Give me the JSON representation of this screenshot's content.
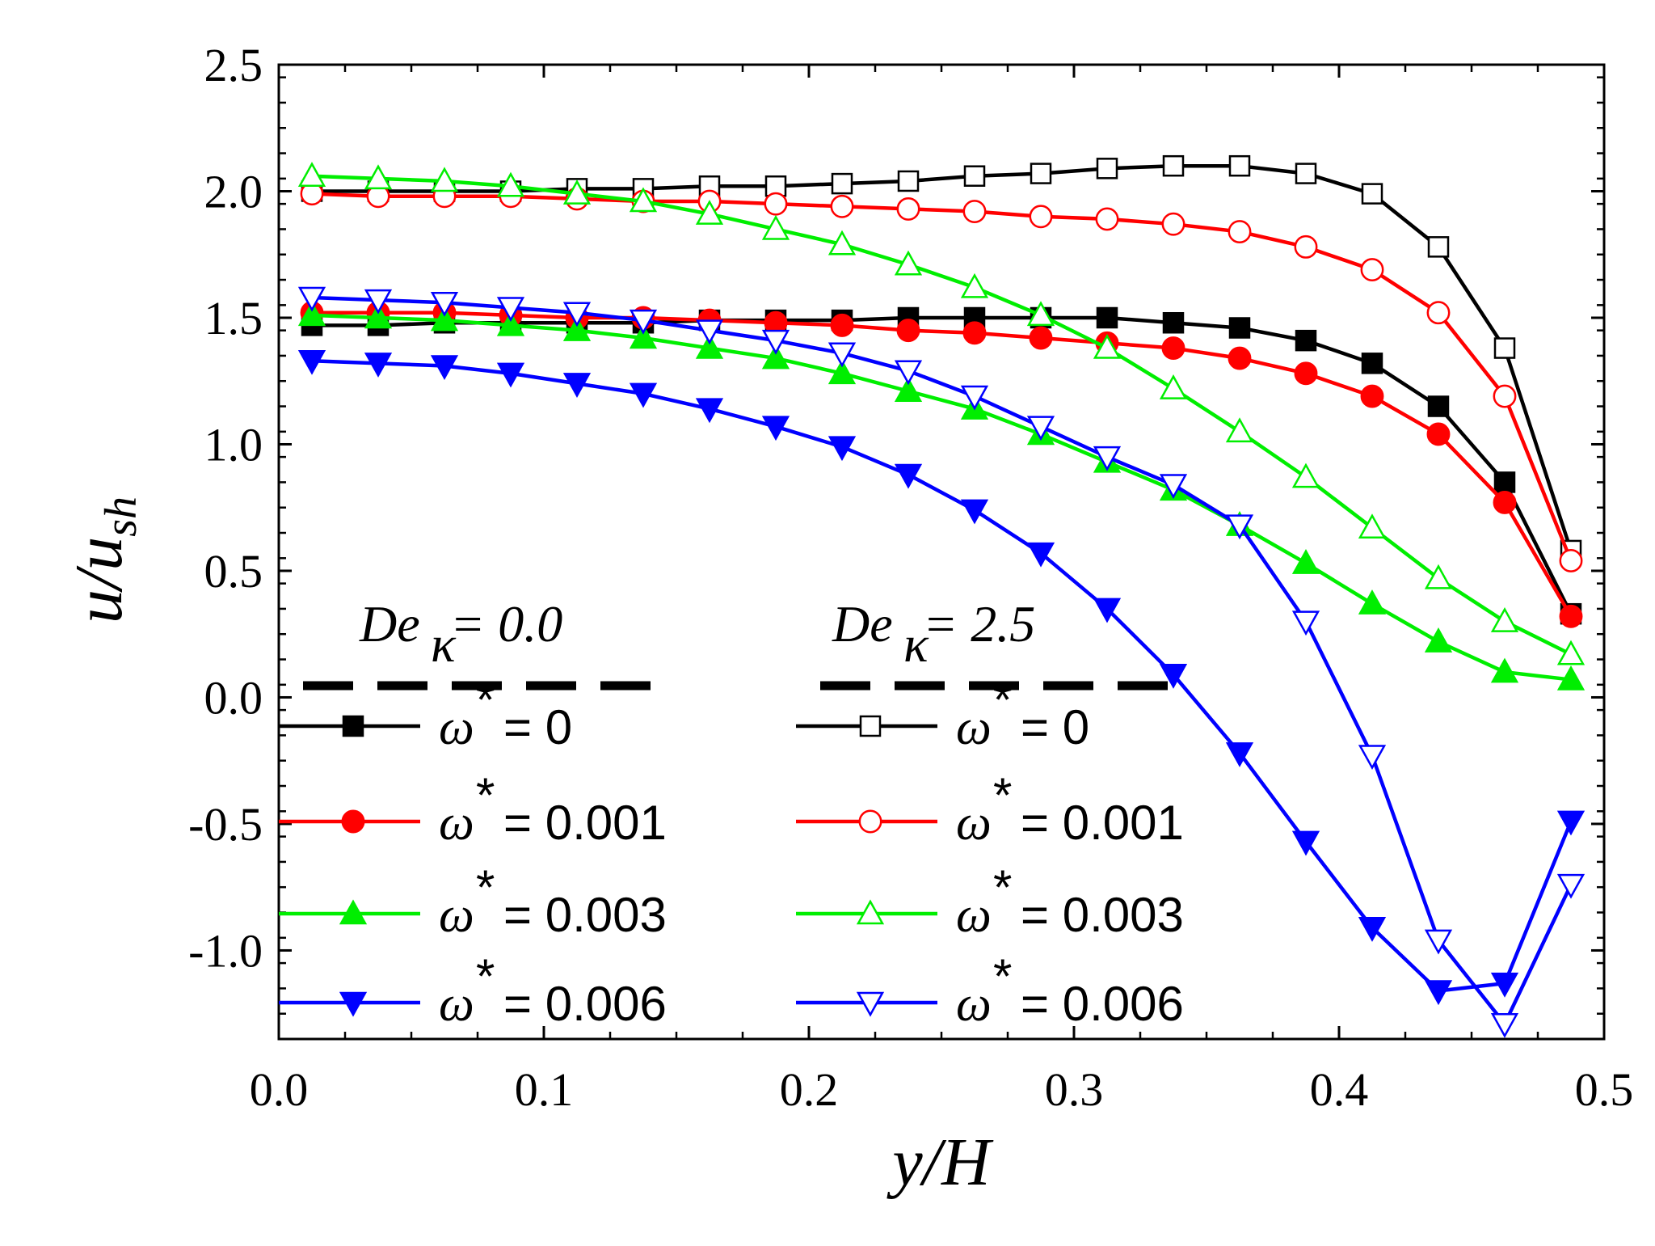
{
  "chart_data": {
    "type": "line",
    "title": "",
    "xlabel": "y/H",
    "ylabel": "u/u_sh",
    "xlim": [
      0.0,
      0.5
    ],
    "ylim": [
      -1.35,
      2.5
    ],
    "x_ticks": [
      "0.0",
      "0.1",
      "0.2",
      "0.3",
      "0.4",
      "0.5"
    ],
    "y_ticks": [
      "2.5",
      "2.0",
      "1.5",
      "1.0",
      "0.5",
      "0.0",
      "-0.5",
      "-1.0"
    ],
    "grid": false,
    "legend": {
      "placement": "lower-left",
      "group_headers": [
        {
          "label": "De",
          "subscript": "κ",
          "value": "= 0.0"
        },
        {
          "label": "De",
          "subscript": "κ",
          "value": "= 2.5"
        }
      ],
      "entry_prefix": "ω",
      "entry_superscript": "*"
    },
    "x": [
      0.0125,
      0.0375,
      0.0625,
      0.0875,
      0.1125,
      0.1375,
      0.1625,
      0.1875,
      0.2125,
      0.2375,
      0.2625,
      0.2875,
      0.3125,
      0.3375,
      0.3625,
      0.3875,
      0.4125,
      0.4375,
      0.4625,
      0.4875
    ],
    "series": [
      {
        "name": "ω* = 0",
        "group": "De_κ = 0.0",
        "label_value": "= 0",
        "color": "#000000",
        "marker": "square",
        "filled": true,
        "values": [
          1.47,
          1.47,
          1.48,
          1.48,
          1.48,
          1.48,
          1.49,
          1.49,
          1.49,
          1.5,
          1.5,
          1.5,
          1.5,
          1.48,
          1.46,
          1.41,
          1.32,
          1.15,
          0.85,
          0.33
        ]
      },
      {
        "name": "ω* = 0.001",
        "group": "De_κ = 0.0",
        "label_value": "= 0.001",
        "color": "#ff0000",
        "marker": "circle",
        "filled": true,
        "values": [
          1.52,
          1.52,
          1.52,
          1.51,
          1.5,
          1.5,
          1.49,
          1.48,
          1.47,
          1.45,
          1.44,
          1.42,
          1.4,
          1.38,
          1.34,
          1.28,
          1.19,
          1.04,
          0.77,
          0.32
        ]
      },
      {
        "name": "ω* = 0.003",
        "group": "De_κ = 0.0",
        "label_value": "= 0.003",
        "color": "#00ee00",
        "marker": "triangle-up",
        "filled": true,
        "values": [
          1.51,
          1.5,
          1.49,
          1.47,
          1.45,
          1.42,
          1.38,
          1.34,
          1.28,
          1.21,
          1.14,
          1.04,
          0.93,
          0.82,
          0.68,
          0.53,
          0.37,
          0.22,
          0.1,
          0.07
        ]
      },
      {
        "name": "ω* = 0.006",
        "group": "De_κ = 0.0",
        "label_value": "= 0.006",
        "color": "#0000ff",
        "marker": "triangle-down",
        "filled": true,
        "values": [
          1.33,
          1.32,
          1.31,
          1.28,
          1.24,
          1.2,
          1.14,
          1.07,
          0.99,
          0.88,
          0.74,
          0.57,
          0.35,
          0.09,
          -0.22,
          -0.57,
          -0.91,
          -1.16,
          -1.13,
          -0.49
        ]
      },
      {
        "name": "ω* = 0",
        "group": "De_κ = 2.5",
        "label_value": "= 0",
        "color": "#000000",
        "marker": "square",
        "filled": false,
        "values": [
          2.0,
          2.0,
          2.0,
          2.0,
          2.01,
          2.01,
          2.02,
          2.02,
          2.03,
          2.04,
          2.06,
          2.07,
          2.09,
          2.1,
          2.1,
          2.07,
          1.99,
          1.78,
          1.38,
          0.58
        ]
      },
      {
        "name": "ω* = 0.001",
        "group": "De_κ = 2.5",
        "label_value": "= 0.001",
        "color": "#ff0000",
        "marker": "circle",
        "filled": false,
        "values": [
          1.99,
          1.98,
          1.98,
          1.98,
          1.97,
          1.96,
          1.96,
          1.95,
          1.94,
          1.93,
          1.92,
          1.9,
          1.89,
          1.87,
          1.84,
          1.78,
          1.69,
          1.52,
          1.19,
          0.54
        ]
      },
      {
        "name": "ω* = 0.003",
        "group": "De_κ = 2.5",
        "label_value": "= 0.003",
        "color": "#00ee00",
        "marker": "triangle-up",
        "filled": false,
        "values": [
          2.06,
          2.05,
          2.04,
          2.02,
          1.99,
          1.96,
          1.91,
          1.85,
          1.79,
          1.71,
          1.62,
          1.51,
          1.38,
          1.22,
          1.05,
          0.87,
          0.67,
          0.47,
          0.3,
          0.17
        ]
      },
      {
        "name": "ω* = 0.006",
        "group": "De_κ = 2.5",
        "label_value": "= 0.006",
        "color": "#0000ff",
        "marker": "triangle-down",
        "filled": false,
        "values": [
          1.58,
          1.57,
          1.56,
          1.54,
          1.52,
          1.49,
          1.45,
          1.41,
          1.36,
          1.29,
          1.19,
          1.07,
          0.95,
          0.84,
          0.68,
          0.3,
          -0.23,
          -0.96,
          -1.29,
          -0.74
        ]
      }
    ]
  }
}
